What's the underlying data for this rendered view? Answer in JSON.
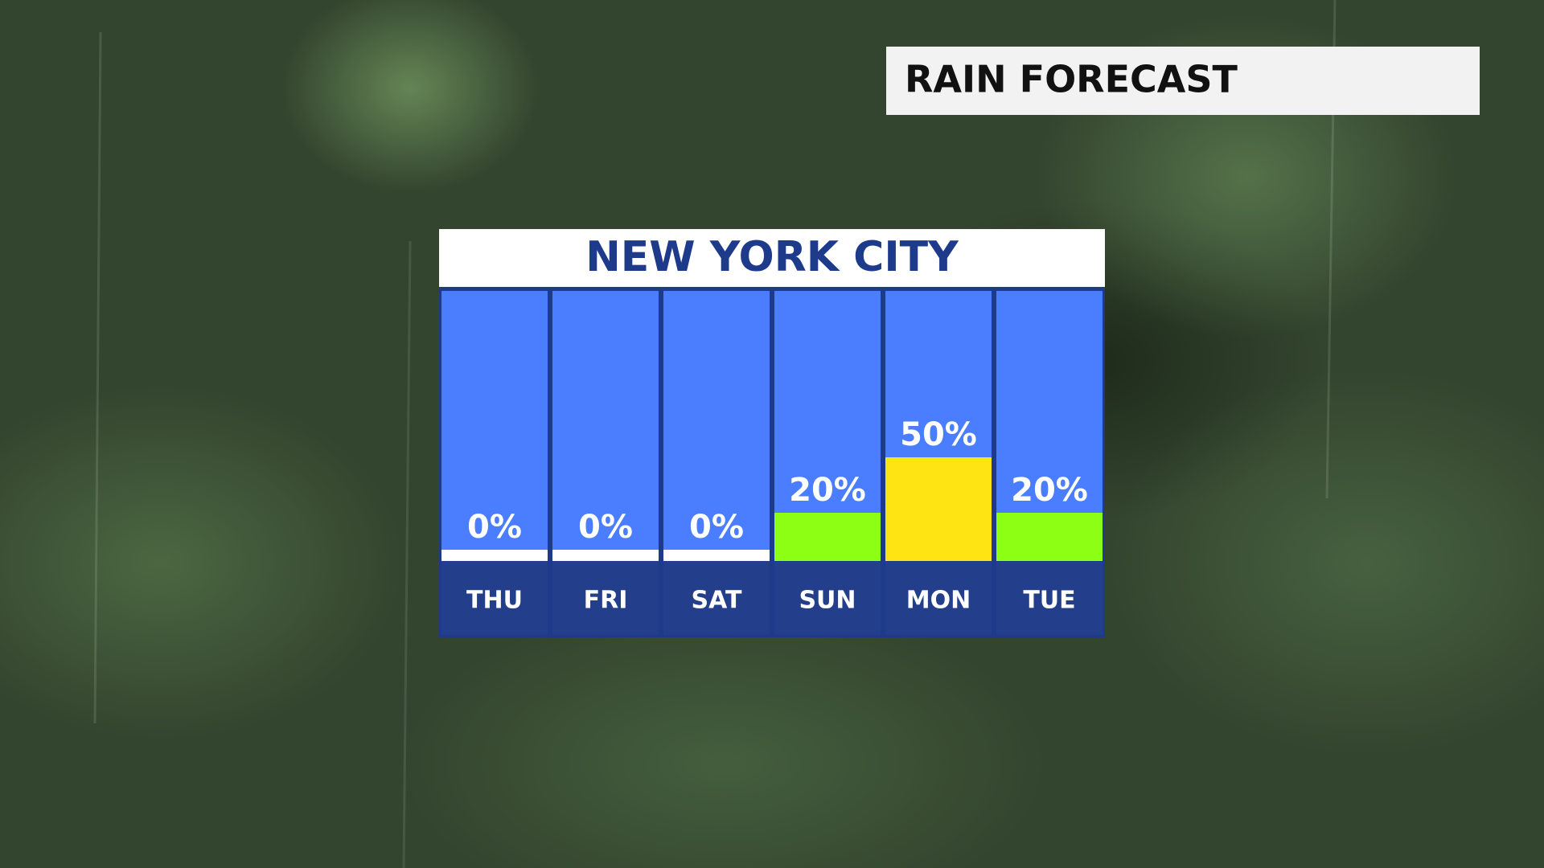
{
  "header": {
    "title": "RAIN FORECAST"
  },
  "chart_data": {
    "type": "bar",
    "title": "NEW YORK CITY",
    "categories": [
      "THU",
      "FRI",
      "SAT",
      "SUN",
      "MON",
      "TUE"
    ],
    "values": [
      0,
      0,
      0,
      20,
      50,
      20
    ],
    "value_labels": [
      "0%",
      "0%",
      "0%",
      "20%",
      "50%",
      "20%"
    ],
    "colors": [
      "#ffffff",
      "#ffffff",
      "#ffffff",
      "#8cff14",
      "#ffe414",
      "#8cff14"
    ]
  }
}
